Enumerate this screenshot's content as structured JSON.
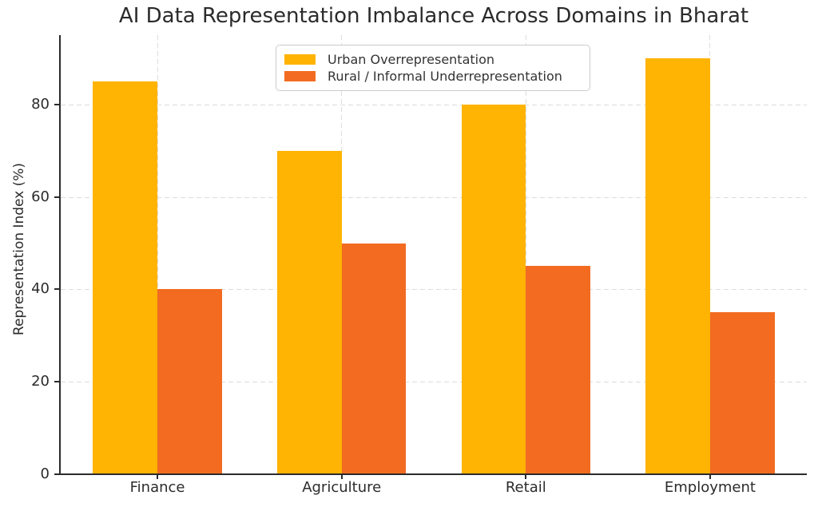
{
  "chart_data": {
    "type": "bar",
    "title": "AI Data Representation Imbalance Across Domains in Bharat",
    "ylabel": "Representation Index (%)",
    "xlabel": "",
    "categories": [
      "Finance",
      "Agriculture",
      "Retail",
      "Employment"
    ],
    "series": [
      {
        "name": "Urban Overrepresentation",
        "color": "#FFB302",
        "values": [
          85,
          70,
          80,
          90
        ]
      },
      {
        "name": "Rural / Informal Underrepresentation",
        "color": "#F26B21",
        "values": [
          40,
          50,
          45,
          35
        ]
      }
    ],
    "yticks": [
      0,
      20,
      40,
      60,
      80
    ],
    "ylim": [
      0,
      95
    ],
    "bar_width": 0.35,
    "grid": "dashed",
    "legend_position": "upper center",
    "axis_color": "#2b2b2b",
    "grid_color": "#dcdcdc"
  }
}
